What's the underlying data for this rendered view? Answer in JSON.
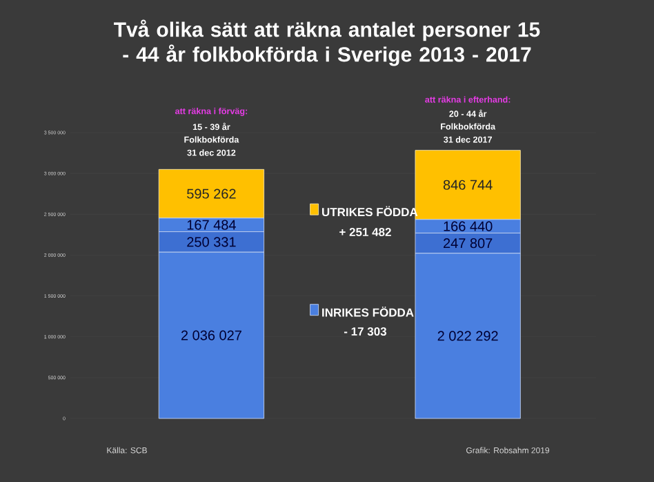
{
  "chart_data": {
    "type": "bar",
    "title": "Två olika sätt att räkna antalet personer 15 - 44 år folkbokförda i Sverige 2013 - 2017",
    "categories": [
      null,
      null
    ],
    "stacked": true,
    "series": [
      {
        "name": "INRIKES FÖDDA",
        "color": "#4a7fe0",
        "values": [
          2036027,
          2022292
        ]
      },
      {
        "color": "#3d6fd2",
        "values": [
          250331,
          247807
        ]
      },
      {
        "color": "#4a7fe0",
        "values": [
          167484,
          166440
        ]
      },
      {
        "name": "UTRIKES FÖDDA",
        "color": "#ffc000",
        "values": [
          595262,
          846744
        ]
      }
    ],
    "data_labels": true,
    "legend": "center",
    "grid": "y",
    "ylim": [
      0,
      3500000
    ],
    "yticks": [
      {
        "value": 0,
        "label": "0"
      },
      {
        "value": 500000,
        "label": "500 000"
      },
      {
        "value": 1000000,
        "label": "1 000 000"
      },
      {
        "value": 1500000,
        "label": "1 500 000"
      },
      {
        "value": 2000000,
        "label": "2 000 000"
      },
      {
        "value": 2500000,
        "label": "2 500 000"
      },
      {
        "value": 3000000,
        "label": "3 000 000"
      },
      {
        "value": 3500000,
        "label": "3 500 000"
      }
    ],
    "annotations": [
      "att räkna i förväg:",
      "15 - 39 år",
      "Folkbokförda",
      "31 dec 2012",
      "att räkna i efterhand:",
      "20 - 44 år",
      "Folkbokförda",
      "31 dec 2017",
      "+ 251 482",
      "- 17 303",
      "Källa: SCB",
      "Grafik: Robsahm 2019"
    ]
  }
}
